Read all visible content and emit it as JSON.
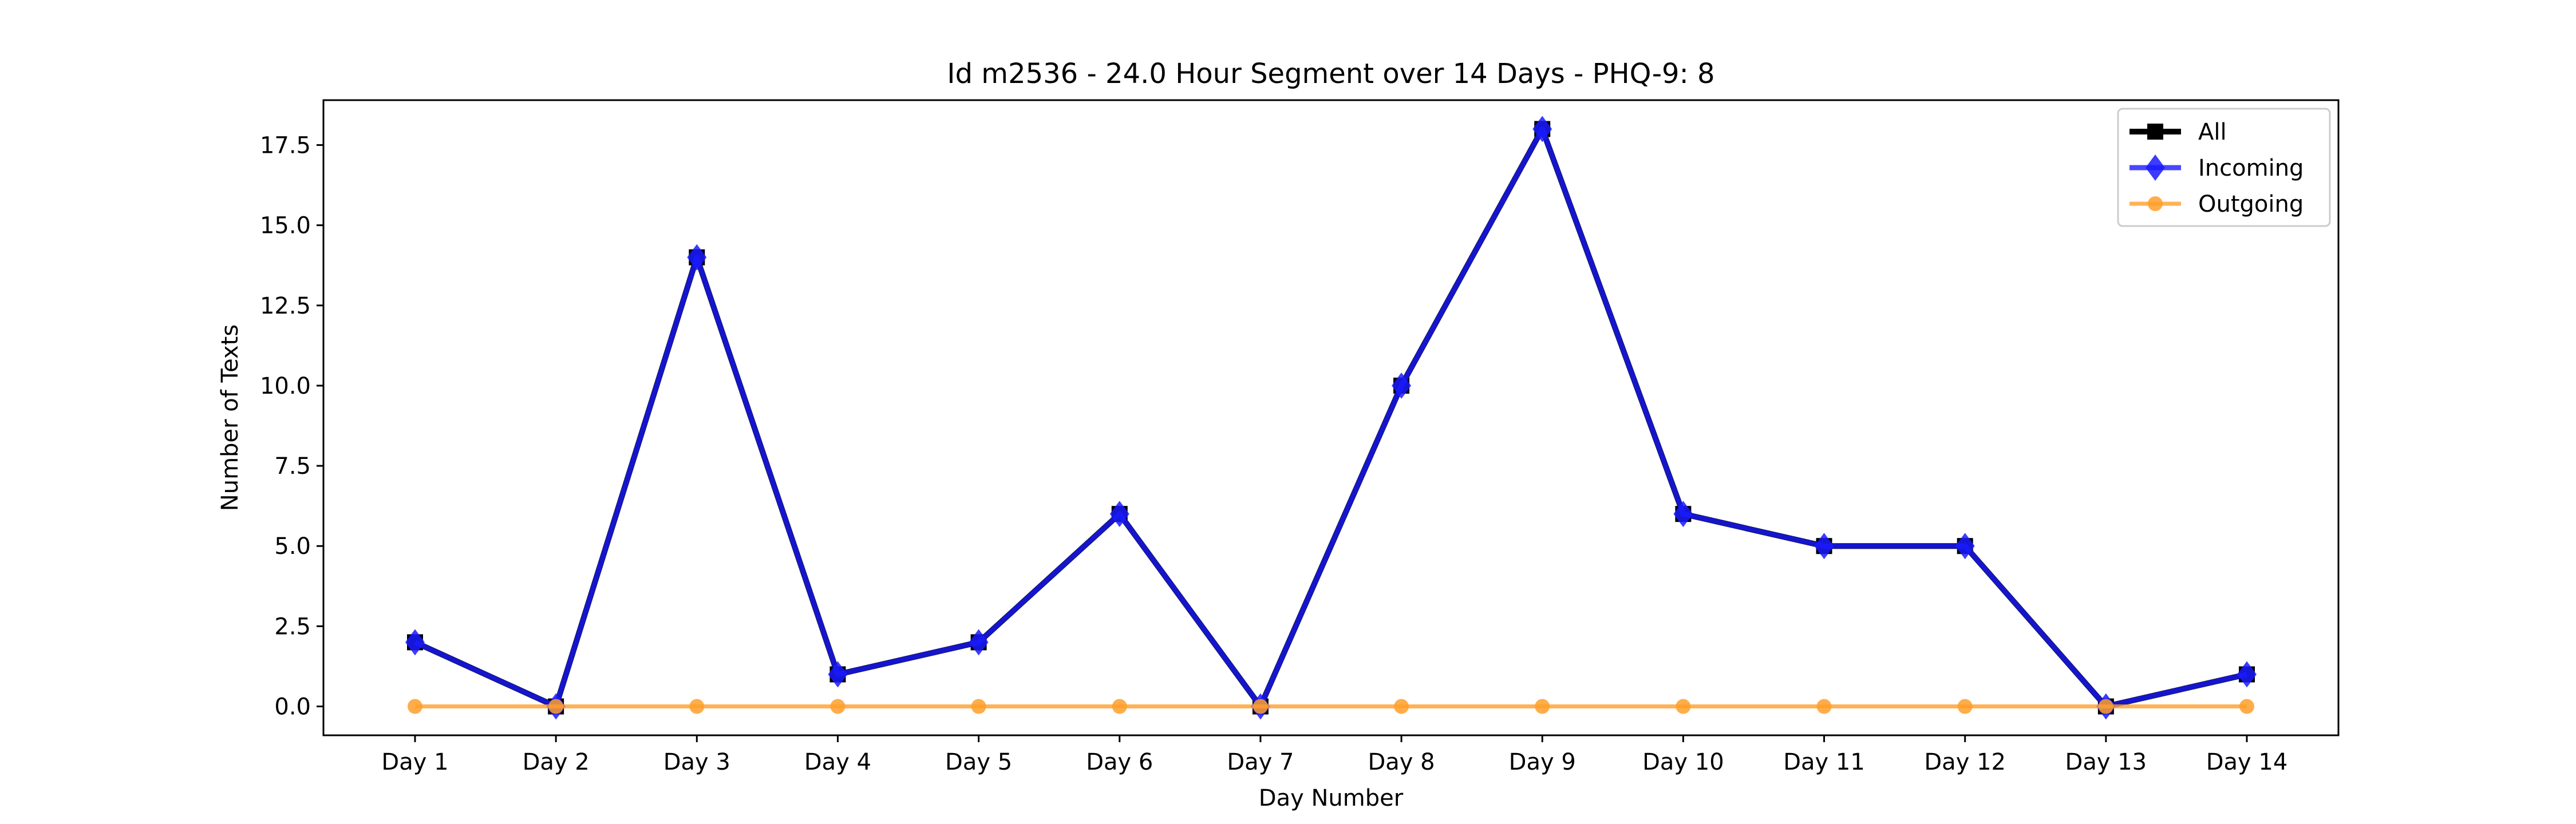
{
  "chart_data": {
    "type": "line",
    "title": "Id m2536 - 24.0 Hour Segment over 14 Days - PHQ-9: 8",
    "xlabel": "Day Number",
    "ylabel": "Number of Texts",
    "categories": [
      "Day 1",
      "Day 2",
      "Day 3",
      "Day 4",
      "Day 5",
      "Day 6",
      "Day 7",
      "Day 8",
      "Day 9",
      "Day 10",
      "Day 11",
      "Day 12",
      "Day 13",
      "Day 14"
    ],
    "ylim": [
      -0.9,
      18.9
    ],
    "yticks": [
      "0.0",
      "2.5",
      "5.0",
      "7.5",
      "10.0",
      "12.5",
      "15.0",
      "17.5"
    ],
    "grid": false,
    "legend_position": "top-right",
    "series": [
      {
        "name": "All",
        "color": "#000000",
        "marker": "square",
        "values": [
          2,
          0,
          14,
          1,
          2,
          6,
          0,
          10,
          18,
          6,
          5,
          5,
          0,
          1
        ]
      },
      {
        "name": "Incoming",
        "color": "#1a1aff",
        "marker": "diamond",
        "values": [
          2,
          0,
          14,
          1,
          2,
          6,
          0,
          10,
          18,
          6,
          5,
          5,
          0,
          1
        ]
      },
      {
        "name": "Outgoing",
        "color": "#ff9f2a",
        "marker": "circle",
        "values": [
          0,
          0,
          0,
          0,
          0,
          0,
          0,
          0,
          0,
          0,
          0,
          0,
          0,
          0
        ]
      }
    ]
  }
}
